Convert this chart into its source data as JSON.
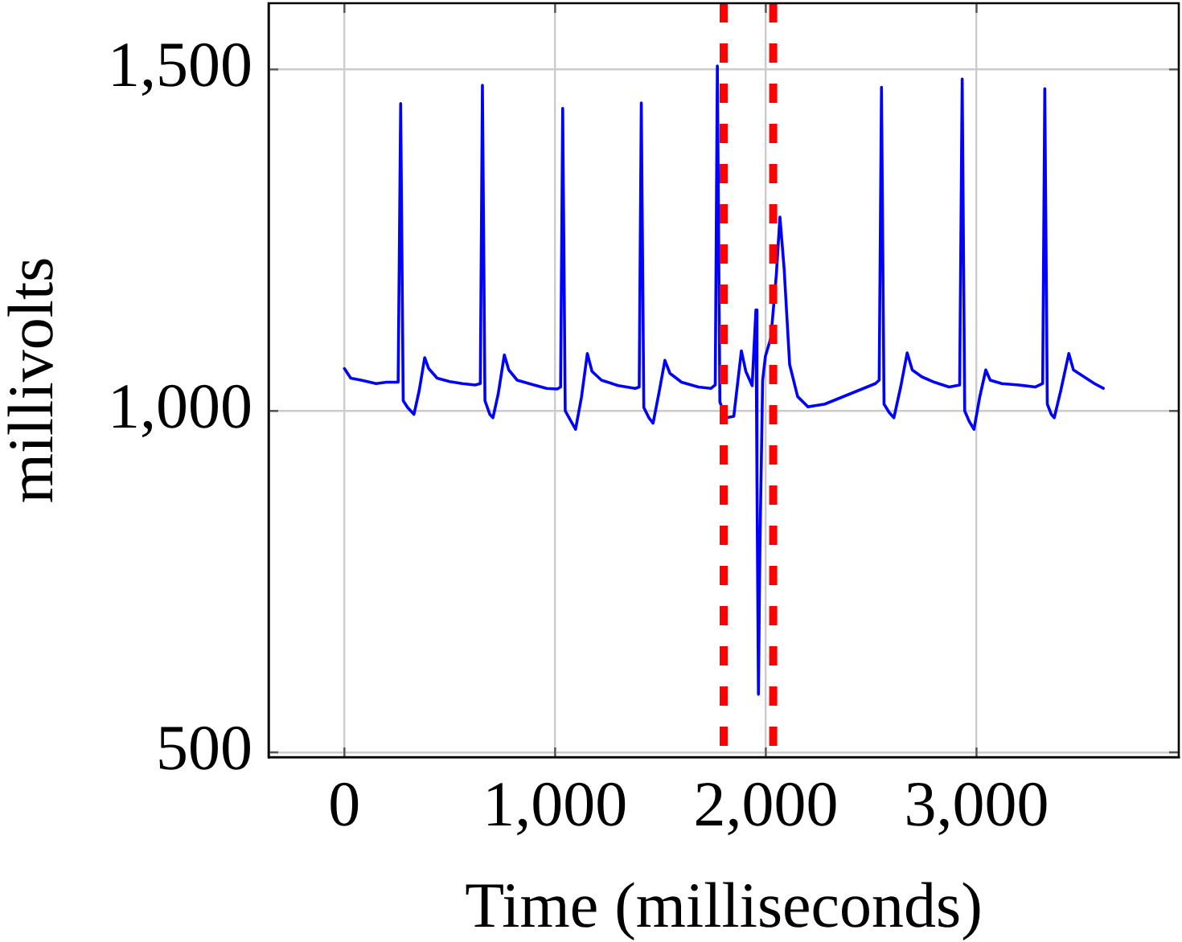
{
  "chart_data": {
    "type": "line",
    "xlabel": "Time (milliseconds)",
    "ylabel": "millivolts",
    "x": [
      0,
      30,
      80,
      150,
      200,
      255,
      267,
      279,
      300,
      330,
      355,
      381,
      400,
      440,
      500,
      560,
      620,
      645,
      655,
      667,
      690,
      705,
      730,
      759,
      780,
      820,
      900,
      960,
      1010,
      1026,
      1036,
      1048,
      1075,
      1097,
      1125,
      1153,
      1175,
      1220,
      1300,
      1380,
      1399,
      1409,
      1421,
      1445,
      1465,
      1495,
      1521,
      1545,
      1600,
      1680,
      1740,
      1760,
      1770,
      1782,
      1811,
      1848,
      1884,
      1905,
      1935,
      1953,
      1958,
      1965,
      1972,
      1985,
      1998,
      2024,
      2050,
      2067,
      2087,
      2113,
      2151,
      2200,
      2280,
      2360,
      2440,
      2520,
      2538,
      2549,
      2561,
      2585,
      2608,
      2640,
      2671,
      2695,
      2740,
      2800,
      2870,
      2920,
      2932,
      2944,
      2965,
      2988,
      3015,
      3044,
      3065,
      3120,
      3200,
      3280,
      3314,
      3324,
      3336,
      3355,
      3369,
      3400,
      3438,
      3460,
      3510,
      3560,
      3602
    ],
    "series": [
      {
        "color": "#0000ff",
        "values": [
          1062,
          1048,
          1045,
          1040,
          1042,
          1042,
          1450,
          1015,
          1005,
          995,
          1030,
          1078,
          1062,
          1048,
          1043,
          1040,
          1038,
          1040,
          1477,
          1015,
          995,
          990,
          1025,
          1082,
          1060,
          1045,
          1038,
          1033,
          1032,
          1035,
          1443,
          1000,
          985,
          973,
          1020,
          1084,
          1058,
          1045,
          1037,
          1033,
          1035,
          1451,
          1005,
          990,
          982,
          1030,
          1074,
          1055,
          1042,
          1035,
          1033,
          1038,
          1505,
          1013,
          990,
          992,
          1088,
          1058,
          1037,
          1148,
          900,
          585,
          800,
          1045,
          1080,
          1107,
          1200,
          1284,
          1208,
          1068,
          1021,
          1006,
          1010,
          1020,
          1030,
          1040,
          1045,
          1474,
          1010,
          998,
          990,
          1035,
          1085,
          1060,
          1050,
          1042,
          1035,
          1038,
          1486,
          1000,
          985,
          973,
          1020,
          1060,
          1045,
          1040,
          1038,
          1035,
          1040,
          1472,
          1010,
          995,
          990,
          1030,
          1084,
          1060,
          1050,
          1040,
          1033
        ]
      }
    ],
    "xlim": [
      -360,
      3960
    ],
    "ylim": [
      493,
      1597
    ],
    "xticks": [
      0,
      {
        "value": 1000,
        "label": "1,000"
      },
      {
        "value": 2000,
        "label": "2,000"
      },
      {
        "value": 3000,
        "label": "3,000"
      }
    ],
    "yticks": [
      500,
      {
        "value": 1000,
        "label": "1,000"
      },
      {
        "value": 1500,
        "label": "1,500"
      }
    ],
    "grid": true,
    "ref_lines": [
      {
        "axis": "x",
        "value": 1800,
        "color": "#ff0000",
        "line_style": "dashed"
      },
      {
        "axis": "x",
        "value": 2035,
        "color": "#ff0000",
        "line_style": "dashed"
      }
    ]
  }
}
